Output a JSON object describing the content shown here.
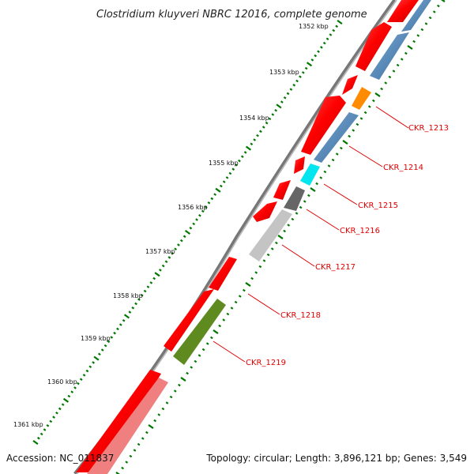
{
  "title": "Clostridium kluyveri NBRC 12016, complete genome",
  "footer": {
    "accession": "Accession: NC_011837",
    "topology": "Topology: circular; Length: 3,896,121 bp; Genes: 3,549"
  },
  "scale_labels": [
    "1352 kbp",
    "1353 kbp",
    "1354 kbp",
    "1355 kbp",
    "1356 kbp",
    "1357 kbp",
    "1358 kbp",
    "1359 kbp",
    "1360 kbp",
    "1361 kbp"
  ],
  "gene_labels": [
    "CKR_1213",
    "CKR_1214",
    "CKR_1215",
    "CKR_1216",
    "CKR_1217",
    "CKR_1218",
    "CKR_1219"
  ],
  "colors": {
    "forward_gene": "#ff0000",
    "reverse_gene": "#4682b4",
    "label_line": "#e00000",
    "tick": "#007700",
    "backbone": "#808080"
  }
}
